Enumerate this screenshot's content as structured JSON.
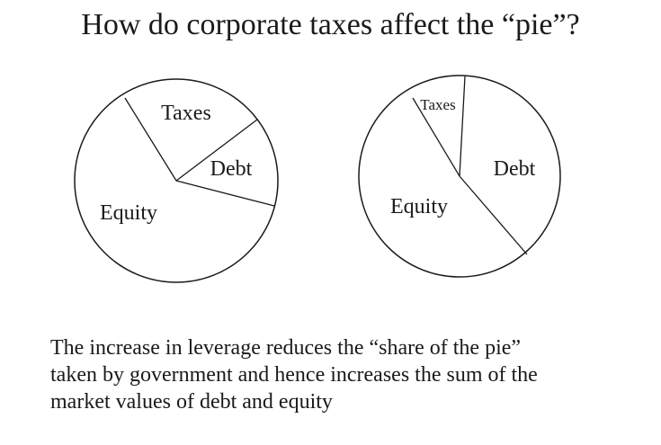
{
  "title": "How do corporate taxes affect the “pie”?",
  "pies": [
    {
      "labels": {
        "taxes": "Taxes",
        "debt": "Debt",
        "equity": "Equity"
      }
    },
    {
      "labels": {
        "taxes": "Taxes",
        "debt": "Debt",
        "equity": "Equity"
      }
    }
  ],
  "caption": {
    "line1": "The increase in leverage reduces the “share of the pie”",
    "line2": "taken by government and hence increases the sum of the",
    "line3": "market values of debt and equity"
  }
}
